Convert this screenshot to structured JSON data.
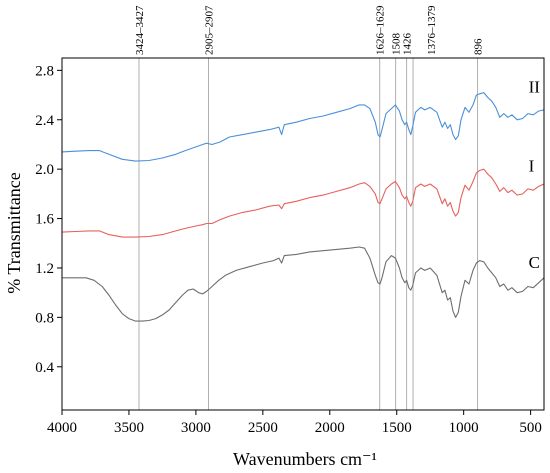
{
  "chart_data": {
    "type": "line",
    "title": "",
    "xlabel": "Wavenumbers cm⁻¹",
    "ylabel": "% Transmittance",
    "xlim": [
      4000,
      400
    ],
    "ylim": [
      0.05,
      2.9
    ],
    "x_reversed": true,
    "grid": false,
    "legend": "none",
    "x_ticks": [
      4000,
      3500,
      3000,
      2500,
      2000,
      1500,
      1000,
      500
    ],
    "y_ticks": [
      0.4,
      0.8,
      1.2,
      1.6,
      2.0,
      2.4,
      2.8
    ],
    "x_tick_labels": [
      "4000",
      "3500",
      "3000",
      "2500",
      "2000",
      "1500",
      "1000",
      "500"
    ],
    "y_tick_labels": [
      "0.4",
      "0.8",
      "1.2",
      "1.6",
      "2.0",
      "2.4",
      "2.8"
    ],
    "annotations": [
      {
        "label": "3424–3427",
        "x": 3425,
        "offset": 0
      },
      {
        "label": "2905–2907",
        "x": 2906,
        "offset": 0
      },
      {
        "label": "1626–1629",
        "x": 1627,
        "offset": 0
      },
      {
        "label": "1508",
        "x": 1508,
        "offset": 0
      },
      {
        "label": "1426",
        "x": 1426,
        "offset": 0
      },
      {
        "label": "1376–1379",
        "x": 1378,
        "offset": 18
      },
      {
        "label": "896",
        "x": 896,
        "offset": 0
      }
    ],
    "series": [
      {
        "label": "II",
        "color": "#4a90d9",
        "points": [
          [
            4000,
            2.14
          ],
          [
            3900,
            2.145
          ],
          [
            3800,
            2.15
          ],
          [
            3720,
            2.15
          ],
          [
            3650,
            2.12
          ],
          [
            3550,
            2.08
          ],
          [
            3450,
            2.065
          ],
          [
            3350,
            2.07
          ],
          [
            3250,
            2.09
          ],
          [
            3150,
            2.12
          ],
          [
            3080,
            2.15
          ],
          [
            3000,
            2.18
          ],
          [
            2950,
            2.2
          ],
          [
            2920,
            2.21
          ],
          [
            2880,
            2.2
          ],
          [
            2820,
            2.22
          ],
          [
            2750,
            2.26
          ],
          [
            2650,
            2.28
          ],
          [
            2550,
            2.3
          ],
          [
            2450,
            2.32
          ],
          [
            2380,
            2.34
          ],
          [
            2360,
            2.28
          ],
          [
            2340,
            2.36
          ],
          [
            2250,
            2.38
          ],
          [
            2150,
            2.41
          ],
          [
            2050,
            2.43
          ],
          [
            1950,
            2.46
          ],
          [
            1850,
            2.49
          ],
          [
            1780,
            2.52
          ],
          [
            1740,
            2.52
          ],
          [
            1700,
            2.49
          ],
          [
            1660,
            2.38
          ],
          [
            1640,
            2.28
          ],
          [
            1625,
            2.26
          ],
          [
            1610,
            2.32
          ],
          [
            1580,
            2.45
          ],
          [
            1540,
            2.49
          ],
          [
            1510,
            2.52
          ],
          [
            1480,
            2.47
          ],
          [
            1460,
            2.4
          ],
          [
            1440,
            2.36
          ],
          [
            1426,
            2.38
          ],
          [
            1410,
            2.32
          ],
          [
            1395,
            2.28
          ],
          [
            1380,
            2.35
          ],
          [
            1360,
            2.46
          ],
          [
            1320,
            2.5
          ],
          [
            1290,
            2.48
          ],
          [
            1250,
            2.5
          ],
          [
            1200,
            2.46
          ],
          [
            1160,
            2.34
          ],
          [
            1140,
            2.38
          ],
          [
            1120,
            2.33
          ],
          [
            1100,
            2.36
          ],
          [
            1080,
            2.28
          ],
          [
            1060,
            2.24
          ],
          [
            1040,
            2.27
          ],
          [
            1020,
            2.4
          ],
          [
            990,
            2.5
          ],
          [
            960,
            2.46
          ],
          [
            930,
            2.52
          ],
          [
            905,
            2.6
          ],
          [
            880,
            2.61
          ],
          [
            850,
            2.62
          ],
          [
            820,
            2.58
          ],
          [
            790,
            2.55
          ],
          [
            760,
            2.5
          ],
          [
            730,
            2.42
          ],
          [
            700,
            2.45
          ],
          [
            670,
            2.42
          ],
          [
            640,
            2.44
          ],
          [
            600,
            2.4
          ],
          [
            560,
            2.41
          ],
          [
            520,
            2.45
          ],
          [
            480,
            2.44
          ],
          [
            440,
            2.47
          ],
          [
            400,
            2.48
          ]
        ]
      },
      {
        "label": "I",
        "color": "#e8605a",
        "points": [
          [
            4000,
            1.49
          ],
          [
            3900,
            1.495
          ],
          [
            3800,
            1.5
          ],
          [
            3720,
            1.5
          ],
          [
            3650,
            1.47
          ],
          [
            3550,
            1.45
          ],
          [
            3450,
            1.45
          ],
          [
            3350,
            1.455
          ],
          [
            3250,
            1.47
          ],
          [
            3150,
            1.5
          ],
          [
            3080,
            1.52
          ],
          [
            3000,
            1.54
          ],
          [
            2950,
            1.55
          ],
          [
            2920,
            1.56
          ],
          [
            2880,
            1.56
          ],
          [
            2820,
            1.59
          ],
          [
            2750,
            1.62
          ],
          [
            2650,
            1.65
          ],
          [
            2550,
            1.67
          ],
          [
            2450,
            1.7
          ],
          [
            2380,
            1.71
          ],
          [
            2360,
            1.68
          ],
          [
            2340,
            1.72
          ],
          [
            2250,
            1.74
          ],
          [
            2150,
            1.77
          ],
          [
            2050,
            1.79
          ],
          [
            1950,
            1.82
          ],
          [
            1850,
            1.85
          ],
          [
            1780,
            1.88
          ],
          [
            1740,
            1.89
          ],
          [
            1700,
            1.86
          ],
          [
            1660,
            1.8
          ],
          [
            1640,
            1.73
          ],
          [
            1625,
            1.72
          ],
          [
            1610,
            1.76
          ],
          [
            1580,
            1.84
          ],
          [
            1540,
            1.88
          ],
          [
            1510,
            1.9
          ],
          [
            1480,
            1.85
          ],
          [
            1460,
            1.79
          ],
          [
            1440,
            1.76
          ],
          [
            1426,
            1.78
          ],
          [
            1410,
            1.73
          ],
          [
            1395,
            1.7
          ],
          [
            1380,
            1.74
          ],
          [
            1360,
            1.85
          ],
          [
            1320,
            1.88
          ],
          [
            1290,
            1.86
          ],
          [
            1250,
            1.88
          ],
          [
            1200,
            1.84
          ],
          [
            1160,
            1.72
          ],
          [
            1140,
            1.76
          ],
          [
            1120,
            1.7
          ],
          [
            1100,
            1.73
          ],
          [
            1080,
            1.66
          ],
          [
            1060,
            1.62
          ],
          [
            1040,
            1.65
          ],
          [
            1020,
            1.77
          ],
          [
            990,
            1.87
          ],
          [
            960,
            1.83
          ],
          [
            930,
            1.9
          ],
          [
            905,
            1.97
          ],
          [
            880,
            1.99
          ],
          [
            850,
            2.0
          ],
          [
            820,
            1.96
          ],
          [
            790,
            1.93
          ],
          [
            760,
            1.88
          ],
          [
            730,
            1.82
          ],
          [
            700,
            1.85
          ],
          [
            670,
            1.81
          ],
          [
            640,
            1.83
          ],
          [
            600,
            1.79
          ],
          [
            560,
            1.8
          ],
          [
            520,
            1.84
          ],
          [
            480,
            1.83
          ],
          [
            440,
            1.86
          ],
          [
            400,
            1.88
          ]
        ]
      },
      {
        "label": "C",
        "color": "#6e6e6e",
        "points": [
          [
            4000,
            1.12
          ],
          [
            3900,
            1.12
          ],
          [
            3820,
            1.12
          ],
          [
            3760,
            1.1
          ],
          [
            3700,
            1.05
          ],
          [
            3650,
            0.98
          ],
          [
            3600,
            0.9
          ],
          [
            3550,
            0.83
          ],
          [
            3500,
            0.79
          ],
          [
            3450,
            0.77
          ],
          [
            3400,
            0.77
          ],
          [
            3350,
            0.775
          ],
          [
            3300,
            0.79
          ],
          [
            3250,
            0.82
          ],
          [
            3200,
            0.86
          ],
          [
            3150,
            0.92
          ],
          [
            3100,
            0.98
          ],
          [
            3060,
            1.02
          ],
          [
            3020,
            1.03
          ],
          [
            2980,
            1.0
          ],
          [
            2950,
            0.99
          ],
          [
            2920,
            1.01
          ],
          [
            2880,
            1.05
          ],
          [
            2830,
            1.1
          ],
          [
            2780,
            1.14
          ],
          [
            2700,
            1.18
          ],
          [
            2600,
            1.21
          ],
          [
            2500,
            1.24
          ],
          [
            2420,
            1.26
          ],
          [
            2380,
            1.28
          ],
          [
            2360,
            1.24
          ],
          [
            2340,
            1.3
          ],
          [
            2250,
            1.31
          ],
          [
            2150,
            1.33
          ],
          [
            2050,
            1.34
          ],
          [
            1950,
            1.35
          ],
          [
            1850,
            1.36
          ],
          [
            1780,
            1.37
          ],
          [
            1740,
            1.36
          ],
          [
            1700,
            1.28
          ],
          [
            1660,
            1.14
          ],
          [
            1640,
            1.08
          ],
          [
            1625,
            1.07
          ],
          [
            1610,
            1.12
          ],
          [
            1580,
            1.25
          ],
          [
            1540,
            1.3
          ],
          [
            1510,
            1.28
          ],
          [
            1480,
            1.2
          ],
          [
            1460,
            1.12
          ],
          [
            1440,
            1.08
          ],
          [
            1426,
            1.1
          ],
          [
            1410,
            1.04
          ],
          [
            1395,
            1.02
          ],
          [
            1380,
            1.06
          ],
          [
            1360,
            1.16
          ],
          [
            1320,
            1.2
          ],
          [
            1290,
            1.18
          ],
          [
            1250,
            1.2
          ],
          [
            1200,
            1.14
          ],
          [
            1160,
            1.0
          ],
          [
            1140,
            1.02
          ],
          [
            1120,
            0.94
          ],
          [
            1100,
            0.96
          ],
          [
            1080,
            0.85
          ],
          [
            1060,
            0.8
          ],
          [
            1040,
            0.84
          ],
          [
            1020,
            0.97
          ],
          [
            990,
            1.1
          ],
          [
            960,
            1.07
          ],
          [
            930,
            1.18
          ],
          [
            905,
            1.24
          ],
          [
            880,
            1.26
          ],
          [
            850,
            1.25
          ],
          [
            820,
            1.2
          ],
          [
            790,
            1.16
          ],
          [
            760,
            1.12
          ],
          [
            730,
            1.05
          ],
          [
            700,
            1.07
          ],
          [
            670,
            1.02
          ],
          [
            640,
            1.04
          ],
          [
            600,
            1.0
          ],
          [
            560,
            1.01
          ],
          [
            520,
            1.05
          ],
          [
            480,
            1.04
          ],
          [
            440,
            1.08
          ],
          [
            400,
            1.12
          ]
        ]
      }
    ]
  }
}
